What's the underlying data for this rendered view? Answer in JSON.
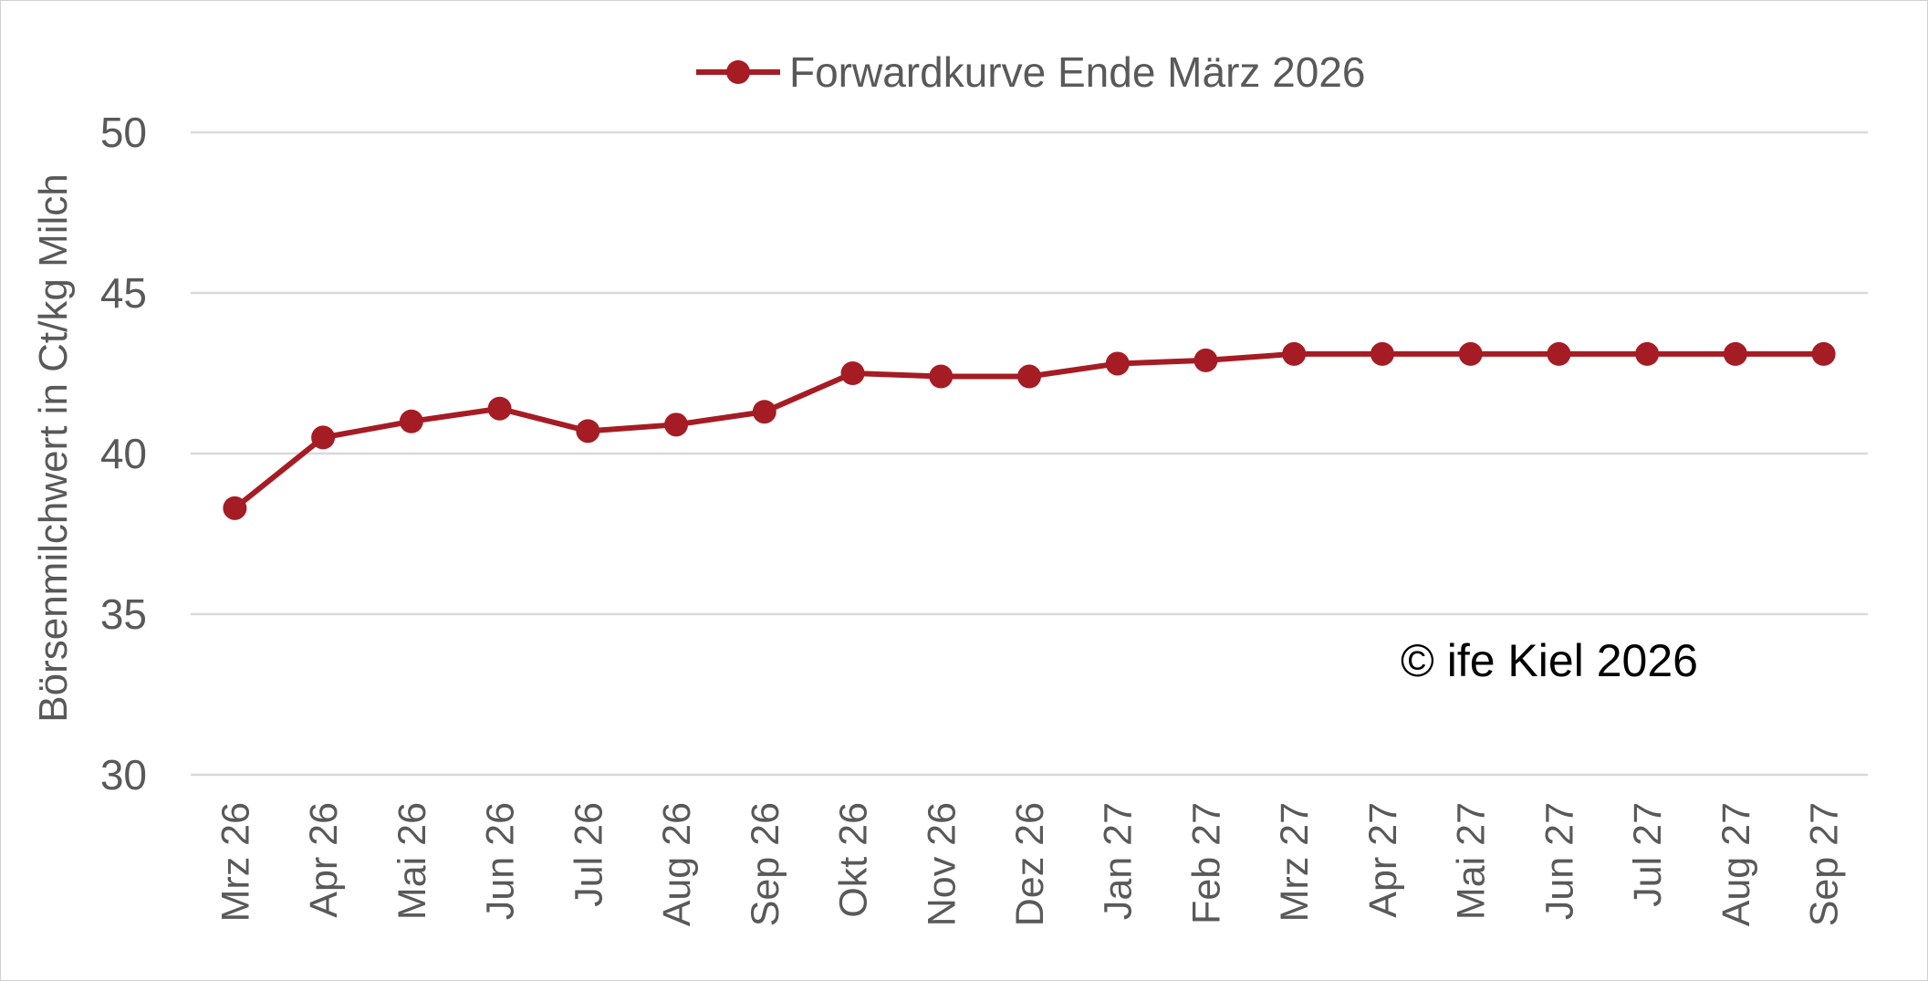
{
  "chart_data": {
    "type": "line",
    "title": "",
    "ylabel": "Börsenmilchwert in Ct/kg Milch",
    "xlabel": "",
    "ylim": [
      30,
      50
    ],
    "yticks": [
      "30",
      "35",
      "40",
      "45",
      "50"
    ],
    "grid": true,
    "legend_position": "top",
    "categories": [
      "Mrz 26",
      "Apr 26",
      "Mai 26",
      "Jun 26",
      "Jul 26",
      "Aug 26",
      "Sep 26",
      "Okt 26",
      "Nov 26",
      "Dez 26",
      "Jan 27",
      "Feb 27",
      "Mrz 27",
      "Apr 27",
      "Mai 27",
      "Jun 27",
      "Jul 27",
      "Aug 27",
      "Sep 27"
    ],
    "series": [
      {
        "name": "Forwardkurve Ende März 2026",
        "color": "#a51c24",
        "values": [
          38.3,
          40.5,
          41.0,
          41.4,
          40.7,
          40.9,
          41.3,
          42.5,
          42.4,
          42.4,
          42.8,
          42.9,
          43.1,
          43.1,
          43.1,
          43.1,
          43.1,
          43.1,
          43.1
        ]
      }
    ],
    "annotation": "© ife Kiel 2026"
  }
}
